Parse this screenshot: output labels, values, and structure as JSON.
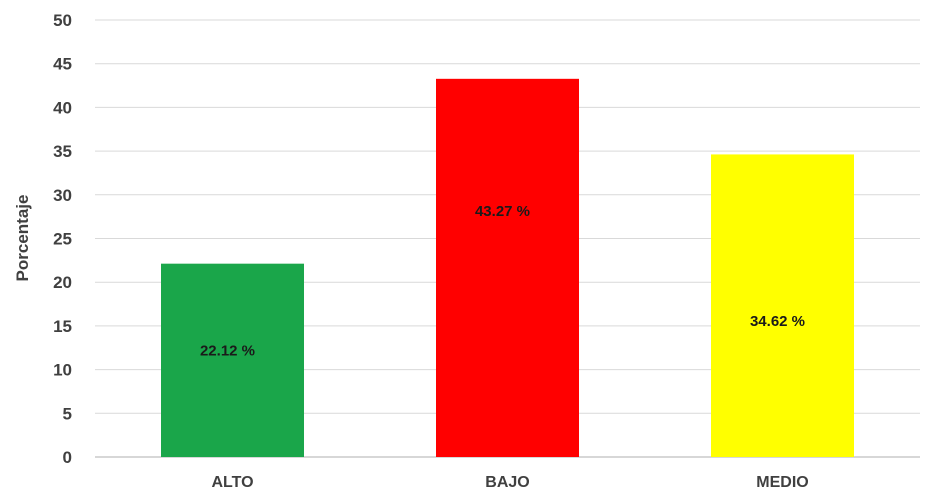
{
  "chart_data": {
    "type": "bar",
    "title": "",
    "xlabel": "",
    "ylabel": "Porcentaje",
    "ylim": [
      0,
      50
    ],
    "ytick_step": 5,
    "grid": true,
    "legend": "none",
    "categories": [
      "ALTO",
      "BAJO",
      "MEDIO"
    ],
    "values": [
      22.12,
      43.27,
      34.62
    ],
    "data_labels": [
      "22.12 %",
      "43.27 %",
      "34.62 %"
    ],
    "colors": [
      "#1aa64a",
      "#ff0000",
      "#ffff00"
    ]
  }
}
